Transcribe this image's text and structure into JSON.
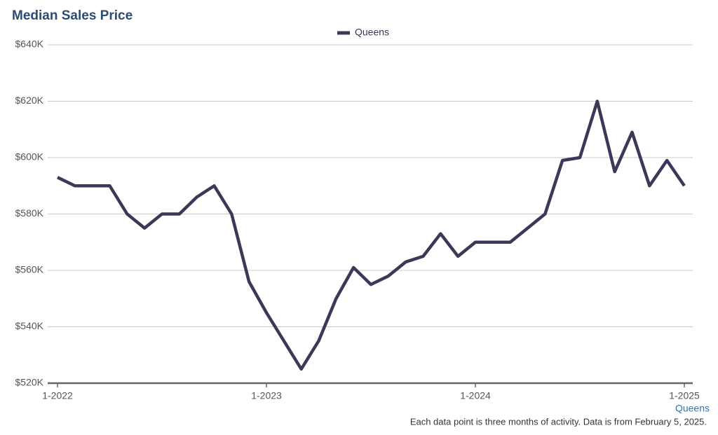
{
  "chart_data": {
    "type": "line",
    "title": "Median Sales Price",
    "x_label": "Queens",
    "note": "Each data point is three months of activity. Data is from February 5, 2025.",
    "categories": [
      "1-2022",
      null,
      null,
      null,
      null,
      null,
      null,
      null,
      null,
      null,
      null,
      null,
      "1-2023",
      null,
      null,
      null,
      null,
      null,
      null,
      null,
      null,
      null,
      null,
      null,
      "1-2024",
      null,
      null,
      null,
      null,
      null,
      null,
      null,
      null,
      null,
      null,
      null,
      "1-2025"
    ],
    "series": [
      {
        "name": "Queens",
        "color": "#3b3858",
        "values": [
          593000,
          590000,
          590000,
          590000,
          580000,
          575000,
          580000,
          580000,
          586000,
          590000,
          580000,
          556000,
          545000,
          535000,
          525000,
          535000,
          550000,
          561000,
          555000,
          558000,
          563000,
          565000,
          573000,
          565000,
          570000,
          570000,
          570000,
          575000,
          580000,
          599000,
          600000,
          620000,
          595000,
          609000,
          590000,
          599000,
          590000
        ]
      }
    ],
    "ylim": [
      520000,
      640000
    ],
    "yticks": [
      {
        "value": 520000,
        "label": "$520K"
      },
      {
        "value": 540000,
        "label": "$540K"
      },
      {
        "value": 560000,
        "label": "$560K"
      },
      {
        "value": 580000,
        "label": "$580K"
      },
      {
        "value": 600000,
        "label": "$600K"
      },
      {
        "value": 620000,
        "label": "$620K"
      },
      {
        "value": 640000,
        "label": "$640K"
      }
    ],
    "grid": true,
    "legend": "top"
  }
}
